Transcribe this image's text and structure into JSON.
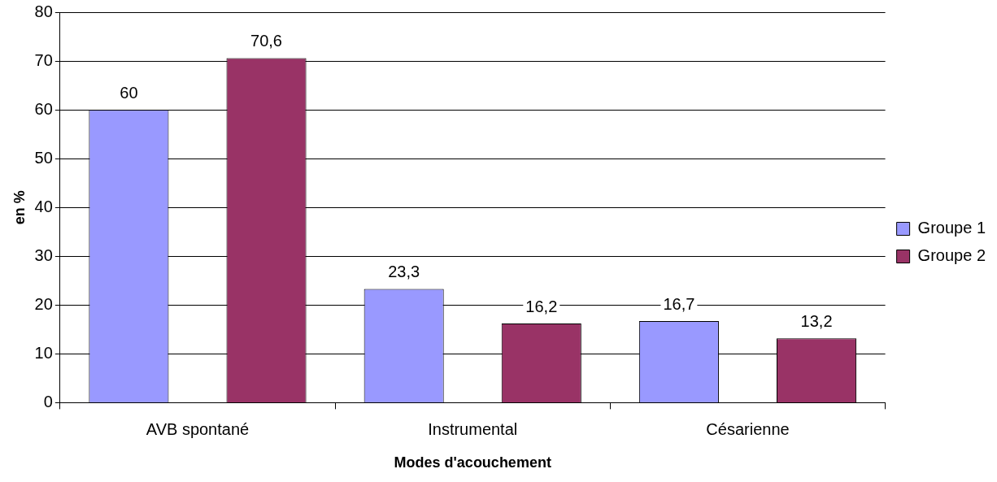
{
  "chart_data": {
    "type": "bar",
    "xlabel": "Modes d'acouchement",
    "ylabel": "en %",
    "categories": [
      "AVB spontané",
      "Instrumental",
      "Césarienne"
    ],
    "series": [
      {
        "name": "Groupe 1",
        "color": "#9999ff",
        "values": [
          60,
          23.3,
          16.7
        ],
        "value_labels": [
          "60",
          "23,3",
          "16,7"
        ]
      },
      {
        "name": "Groupe 2",
        "color": "#993366",
        "values": [
          70.6,
          16.2,
          13.2
        ],
        "value_labels": [
          "70,6",
          "16,2",
          "13,2"
        ]
      }
    ],
    "ylim": [
      0,
      80
    ],
    "yticks": [
      0,
      10,
      20,
      30,
      40,
      50,
      60,
      70,
      80
    ],
    "grid": "y",
    "legend": "right"
  }
}
